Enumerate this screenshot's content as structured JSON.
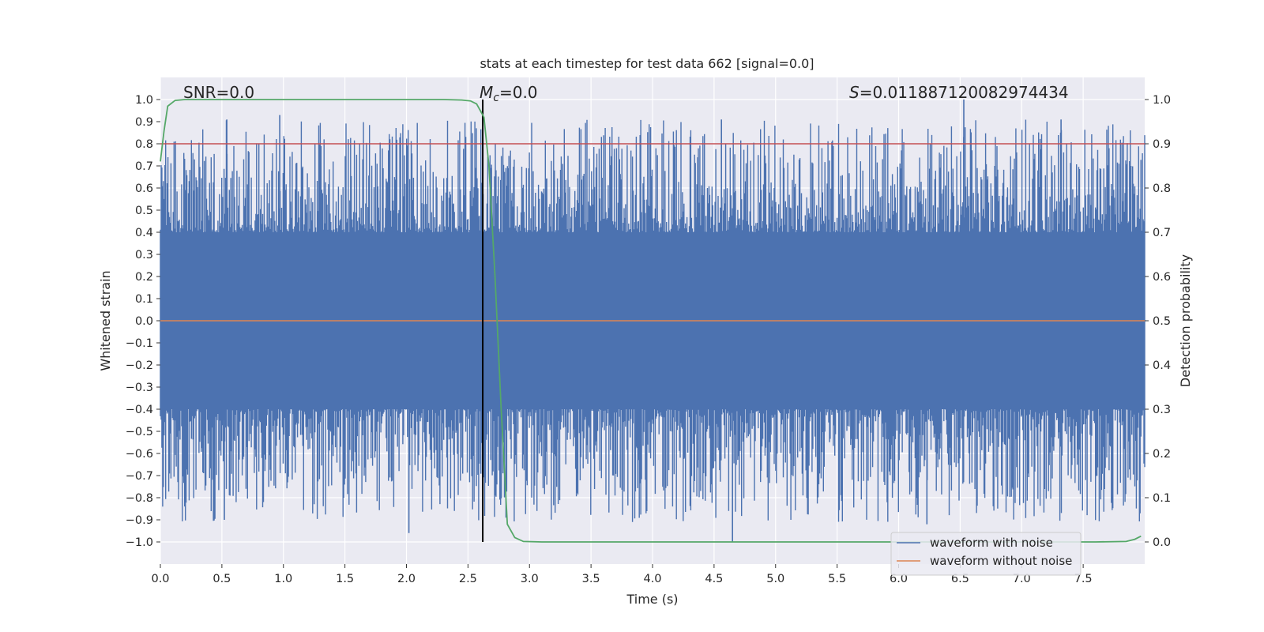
{
  "colors": {
    "background": "#EAEAF2",
    "grid": "#FFFFFF",
    "waveform_noise": "#4C72B0",
    "waveform_clean": "#DD8452",
    "probability": "#55A868",
    "threshold": "#C44E52",
    "merger_marker": "#000000"
  },
  "chart_data": {
    "type": "line",
    "title": "stats at each timestep for test data 662 [signal=0.0]",
    "xlabel": "Time (s)",
    "ylabel": "Whitened strain",
    "y2label": "Detection probability",
    "xlim": [
      0.0,
      8.0
    ],
    "ylim": [
      -1.1,
      1.1
    ],
    "y2lim": [
      -0.05,
      1.05
    ],
    "x_ticks": [
      0.0,
      0.5,
      1.0,
      1.5,
      2.0,
      2.5,
      3.0,
      3.5,
      4.0,
      4.5,
      5.0,
      5.5,
      6.0,
      6.5,
      7.0,
      7.5
    ],
    "x_tick_labels": [
      "0.0",
      "0.5",
      "1.0",
      "1.5",
      "2.0",
      "2.5",
      "3.0",
      "3.5",
      "4.0",
      "4.5",
      "5.0",
      "5.5",
      "6.0",
      "6.5",
      "7.0",
      "7.5"
    ],
    "y_ticks": [
      1.0,
      0.9,
      0.8,
      0.7,
      0.6,
      0.5,
      0.4,
      0.3,
      0.2,
      0.1,
      0.0,
      -0.1,
      -0.2,
      -0.3,
      -0.4,
      -0.5,
      -0.6,
      -0.7,
      -0.8,
      -0.9,
      -1.0
    ],
    "y_tick_labels": [
      "1.0",
      "0.9",
      "0.8",
      "0.7",
      "0.6",
      "0.5",
      "0.4",
      "0.3",
      "0.2",
      "0.1",
      "0.0",
      "−0.1",
      "−0.2",
      "−0.3",
      "−0.4",
      "−0.5",
      "−0.6",
      "−0.7",
      "−0.8",
      "−0.9",
      "−1.0"
    ],
    "y2_ticks": [
      1.0,
      0.9,
      0.8,
      0.7,
      0.6,
      0.5,
      0.4,
      0.3,
      0.2,
      0.1,
      0.0
    ],
    "y2_tick_labels": [
      "1.0",
      "0.9",
      "0.8",
      "0.7",
      "0.6",
      "0.5",
      "0.4",
      "0.3",
      "0.2",
      "0.1",
      "0.0"
    ],
    "grid": true,
    "annotations": {
      "snr": "SNR=0.0",
      "mc_symbol": "M",
      "mc_subscript": "c",
      "mc_value": "=0.0",
      "s_symbol": "S",
      "s_value": "=0.011887120082974434"
    },
    "legend": {
      "placement": "lower-right",
      "entries": [
        "waveform with noise",
        "waveform without noise"
      ]
    },
    "series": [
      {
        "name": "waveform with noise",
        "axis": "left",
        "style": "noise-band",
        "x_range": [
          0.0,
          8.0
        ],
        "core_amplitude": 0.4,
        "peak_amplitude": 1.0,
        "notable_peaks": [
          {
            "x": 0.54,
            "y": 0.91
          },
          {
            "x": 0.97,
            "y": 0.93
          },
          {
            "x": 4.56,
            "y": 0.91
          },
          {
            "x": 6.53,
            "y": 1.0
          },
          {
            "x": 7.32,
            "y": 0.91
          },
          {
            "x": 2.02,
            "y": -0.96
          },
          {
            "x": 4.65,
            "y": -1.0
          },
          {
            "x": 6.23,
            "y": -0.92
          },
          {
            "x": 0.52,
            "y": -0.9
          }
        ]
      },
      {
        "name": "waveform without noise",
        "axis": "left",
        "x": [
          0.0,
          8.0
        ],
        "y": [
          0.0,
          0.0
        ]
      },
      {
        "name": "Detection probability",
        "axis": "right",
        "x": [
          0.0,
          0.03,
          0.06,
          0.12,
          0.2,
          0.5,
          1.0,
          1.5,
          2.0,
          2.3,
          2.45,
          2.52,
          2.57,
          2.6,
          2.63,
          2.67,
          2.72,
          2.77,
          2.82,
          2.88,
          2.95,
          3.1,
          4.0,
          5.0,
          6.0,
          7.0,
          7.6,
          7.85,
          7.92,
          7.97
        ],
        "y": [
          0.86,
          0.93,
          0.985,
          0.998,
          1.0,
          1.0,
          1.0,
          1.0,
          1.0,
          1.0,
          0.999,
          0.997,
          0.99,
          0.975,
          0.96,
          0.85,
          0.6,
          0.3,
          0.04,
          0.01,
          0.001,
          0.0,
          0.0,
          0.0,
          0.0,
          0.0,
          0.0,
          0.001,
          0.006,
          0.013
        ]
      }
    ],
    "threshold_line": {
      "axis": "right",
      "value": 0.9
    },
    "merger_marker": {
      "x": 2.62,
      "y_from": -1.0,
      "y_to": 1.0
    }
  }
}
